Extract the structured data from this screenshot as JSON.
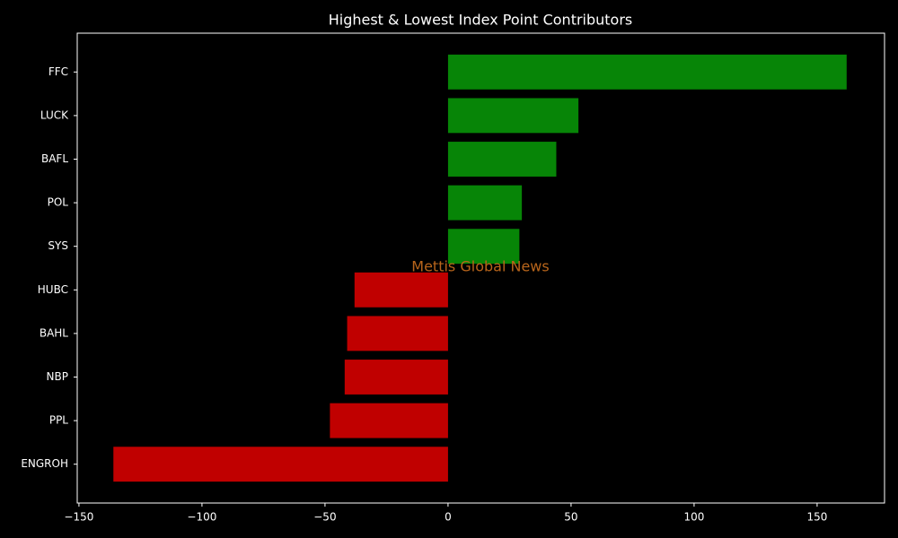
{
  "chart_data": {
    "type": "barh",
    "title": "Highest & Lowest Index Point Contributors",
    "categories": [
      "FFC",
      "LUCK",
      "BAFL",
      "POL",
      "SYS",
      "HUBC",
      "BAHL",
      "NBP",
      "PPL",
      "ENGROH"
    ],
    "values": [
      162,
      53,
      44,
      30,
      29,
      -38,
      -41,
      -42,
      -48,
      -136
    ],
    "colors": [
      "#078507",
      "#078507",
      "#078507",
      "#078507",
      "#078507",
      "#c00000",
      "#c00000",
      "#c00000",
      "#c00000",
      "#c00000"
    ],
    "xlim": [
      -150.7,
      177.4
    ],
    "xticks": [
      {
        "value": -150,
        "label": "−150"
      },
      {
        "value": -100,
        "label": "−100"
      },
      {
        "value": -50,
        "label": "−50"
      },
      0,
      50,
      100,
      150
    ],
    "watermark": "Mettis Global News"
  }
}
